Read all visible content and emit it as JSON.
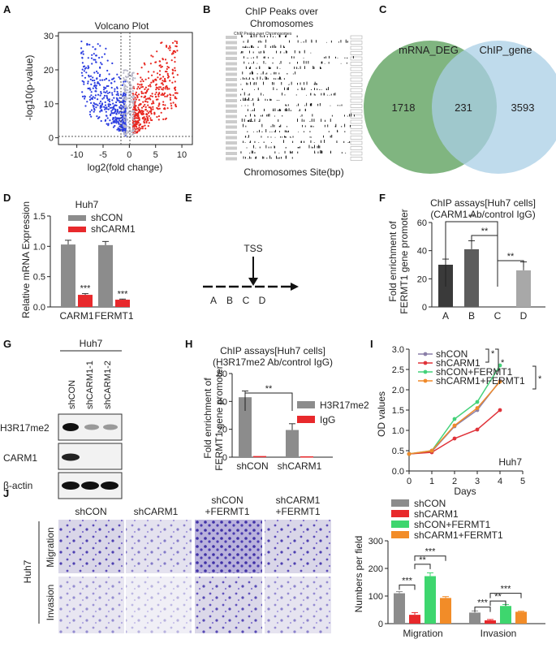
{
  "panels": {
    "A": {
      "label": "A",
      "title": "Volcano Plot",
      "xlabel": "log2(fold change)",
      "ylabel": "-log10(p-value)",
      "xticks": [
        "-10",
        "-5",
        "0",
        "5",
        "10"
      ],
      "yticks": [
        "0",
        "10",
        "20",
        "30"
      ],
      "colors": {
        "down": "#2b3de0",
        "ns": "#b8b8c8",
        "up": "#e8261f"
      }
    },
    "B": {
      "label": "B",
      "title_line1": "ChIP Peaks over",
      "title_line2": "Chromosomes",
      "inner_title": "ChIP Peaks over Chromosomes",
      "xlabel": "Chromosomes Site(bp)"
    },
    "C": {
      "label": "C",
      "left_name": "mRNA_DEG",
      "right_name": "ChIP_gene",
      "left_only": "1718",
      "overlap": "231",
      "right_only": "3593",
      "colors": {
        "left": "#6aa86a",
        "right": "#a9cfe6"
      }
    },
    "D": {
      "label": "D",
      "title": "Huh7",
      "ylabel": "Relative mRNA Expression",
      "yticks": [
        "0.0",
        "0.5",
        "1.0",
        "1.5"
      ],
      "legend": [
        "shCON",
        "shCARM1"
      ],
      "categories": [
        "CARM1",
        "FERMT1"
      ],
      "sig": [
        "***",
        "***"
      ]
    },
    "E": {
      "label": "E",
      "tss": "TSS",
      "sites": [
        "A",
        "B",
        "C",
        "D"
      ]
    },
    "F": {
      "label": "F",
      "title_line1": "ChIP assays[Huh7 cells]",
      "title_line2": "(CARM1 Ab/control IgG)",
      "ylabel_line1": "Fold enrichment of",
      "ylabel_line2": "FERMT1 gene promoter",
      "yticks": [
        "0",
        "20",
        "40",
        "60"
      ],
      "categories": [
        "A",
        "B",
        "C",
        "D"
      ],
      "sig": [
        "**",
        "**",
        "**"
      ]
    },
    "G": {
      "label": "G",
      "cell": "Huh7",
      "lanes": [
        "shCON",
        "shCARM1-1",
        "shCARM1-2"
      ],
      "rows": [
        "H3R17me2",
        "CARM1",
        "β-actin"
      ]
    },
    "H": {
      "label": "H",
      "title_line1": "ChIP assays[Huh7 cells]",
      "title_line2": "(H3R17me2 Ab/control IgG)",
      "ylabel_line1": "Fold enrichment of",
      "ylabel_line2": "FERMT1 gene promoter",
      "yticks": [
        "0",
        "20",
        "40",
        "60"
      ],
      "legend": [
        "H3R17me2",
        "IgG"
      ],
      "categories": [
        "shCON",
        "shCARM1"
      ],
      "sig": "**"
    },
    "I": {
      "label": "I",
      "ylabel": "OD values",
      "xlabel": "Days",
      "xticks": [
        "0",
        "1",
        "2",
        "3",
        "4",
        "5"
      ],
      "yticks": [
        "0.0",
        "0.5",
        "1.0",
        "1.5",
        "2.0",
        "2.5",
        "3.0"
      ],
      "legend": [
        "shCON",
        "shCARM1",
        "shCON+FERMT1",
        "shCARM1+FERMT1"
      ],
      "cell": "Huh7",
      "sig": [
        "*",
        "*",
        "*"
      ]
    },
    "J": {
      "label": "J",
      "col_heads": [
        [
          "shCON",
          ""
        ],
        [
          "shCARM1",
          ""
        ],
        [
          "shCON",
          "+FERMT1"
        ],
        [
          "shCARM1",
          "+FERMT1"
        ]
      ],
      "cell": "Huh7",
      "row_labels": [
        "Migration",
        "Invasion"
      ],
      "ylabel": "Numbers per field",
      "yticks": [
        "0",
        "100",
        "200",
        "300"
      ],
      "legend": [
        "shCON",
        "shCARM1",
        "shCON+FERMT1",
        "shCARM1+FERMT1"
      ],
      "categories": [
        "Migration",
        "Invasion"
      ],
      "sig_migration": [
        "***",
        "**",
        "***"
      ],
      "sig_invasion": [
        "***",
        "**",
        "***"
      ]
    }
  },
  "chart_data": [
    {
      "id": "D",
      "type": "bar",
      "title": "Huh7",
      "ylabel": "Relative mRNA Expression",
      "ylim": [
        0,
        1.5
      ],
      "categories": [
        "CARM1",
        "FERMT1"
      ],
      "series": [
        {
          "name": "shCON",
          "values": [
            1.03,
            1.02
          ],
          "errors": [
            0.07,
            0.06
          ],
          "color": "#8c8c8c"
        },
        {
          "name": "shCARM1",
          "values": [
            0.2,
            0.12
          ],
          "errors": [
            0.02,
            0.01
          ],
          "color": "#e8292c"
        }
      ]
    },
    {
      "id": "F",
      "type": "bar",
      "title": "ChIP assays[Huh7 cells] (CARM1 Ab/control IgG)",
      "ylim": [
        0,
        60
      ],
      "categories": [
        "A",
        "B",
        "C",
        "D"
      ],
      "values": [
        30,
        41,
        0,
        26
      ],
      "errors": [
        4,
        6,
        0,
        6
      ],
      "colors": [
        "#3a3a3a",
        "#5c5c5c",
        "#a8a8a8",
        "#a8a8a8"
      ]
    },
    {
      "id": "H",
      "type": "bar",
      "title": "ChIP assays[Huh7 cells] (H3R17me2 Ab/control IgG)",
      "ylim": [
        0,
        60
      ],
      "categories": [
        "shCON",
        "shCARM1"
      ],
      "series": [
        {
          "name": "H3R17me2",
          "values": [
            43,
            19.5
          ],
          "errors": [
            4.5,
            4.5
          ],
          "color": "#8c8c8c"
        },
        {
          "name": "IgG",
          "values": [
            0.8,
            0.6
          ],
          "errors": [
            0.2,
            0.2
          ],
          "color": "#e8292c"
        }
      ]
    },
    {
      "id": "I",
      "type": "line",
      "xlabel": "Days",
      "ylabel": "OD values",
      "xlim": [
        0,
        5
      ],
      "ylim": [
        0,
        3
      ],
      "x": [
        0,
        1,
        2,
        3,
        4
      ],
      "series": [
        {
          "name": "shCON",
          "values": [
            0.42,
            0.48,
            1.1,
            1.5,
            2.22
          ],
          "color": "#8a7fa8"
        },
        {
          "name": "shCARM1",
          "values": [
            0.42,
            0.46,
            0.8,
            1.02,
            1.5
          ],
          "color": "#e0333a"
        },
        {
          "name": "shCON+FERMT1",
          "values": [
            0.42,
            0.5,
            1.28,
            1.7,
            2.6
          ],
          "color": "#44d27a"
        },
        {
          "name": "shCARM1+FERMT1",
          "values": [
            0.42,
            0.5,
            1.12,
            1.55,
            2.2
          ],
          "color": "#f08a2a"
        }
      ]
    },
    {
      "id": "J",
      "type": "bar",
      "ylabel": "Numbers per field",
      "ylim": [
        0,
        300
      ],
      "categories": [
        "Migration",
        "Invasion"
      ],
      "series": [
        {
          "name": "shCON",
          "values": [
            110,
            40
          ],
          "errors": [
            6,
            6
          ],
          "color": "#8c8c8c"
        },
        {
          "name": "shCARM1",
          "values": [
            32,
            12
          ],
          "errors": [
            8,
            3
          ],
          "color": "#e8292c"
        },
        {
          "name": "shCON+FERMT1",
          "values": [
            172,
            64
          ],
          "errors": [
            12,
            5
          ],
          "color": "#3ed66e"
        },
        {
          "name": "shCARM1+FERMT1",
          "values": [
            93,
            43
          ],
          "errors": [
            5,
            2
          ],
          "color": "#f28c28"
        }
      ]
    }
  ]
}
